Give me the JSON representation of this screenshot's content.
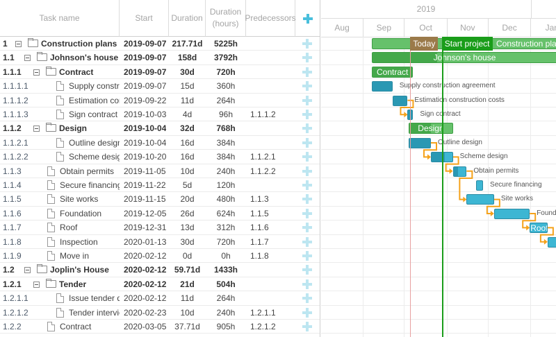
{
  "columns": {
    "task_name": "Task name",
    "start": "Start",
    "duration": "Duration",
    "duration_hours": "Duration (hours)",
    "predecessors": "Predecessors",
    "add_icon": "plus-icon"
  },
  "timescale": {
    "year": "2019",
    "months": [
      "Aug",
      "Sep",
      "Oct",
      "Nov",
      "Dec",
      "Jan"
    ]
  },
  "markers": [
    {
      "label": "Today",
      "date": "2019-10-05",
      "color": "#e8a0a0",
      "label_bg": "#9b7a4a"
    },
    {
      "label": "Start project",
      "date": "2019-10-28",
      "color": "#1a9d1a",
      "label_bg": "#1a9d1a"
    }
  ],
  "colors": {
    "summary_bar": "#66c16b",
    "summary_progress": "#44a84a",
    "task_bar": "#3db6d3",
    "task_progress": "#2a98b3",
    "link": "#f5a21b"
  },
  "tasks": [
    {
      "wbs": "1",
      "name": "Construction plans",
      "start": "2019-09-07",
      "duration": "217.71d",
      "hours": "5225h",
      "pred": "",
      "level": 1,
      "summary": true,
      "days": 217.71,
      "progress": 0,
      "label_inside": true
    },
    {
      "wbs": "1.1",
      "name": "Johnson's house",
      "start": "2019-09-07",
      "duration": "158d",
      "hours": "3792h",
      "pred": "",
      "level": 2,
      "summary": true,
      "days": 158,
      "progress": 0.3,
      "label_inside": true
    },
    {
      "wbs": "1.1.1",
      "name": "Contract",
      "start": "2019-09-07",
      "duration": "30d",
      "hours": "720h",
      "pred": "",
      "level": 3,
      "summary": true,
      "days": 30,
      "progress": 1,
      "label_inside": true
    },
    {
      "wbs": "1.1.1.1",
      "name": "Supply construction agreement",
      "start": "2019-09-07",
      "duration": "15d",
      "hours": "360h",
      "pred": "",
      "level": 4,
      "summary": false,
      "days": 15,
      "progress": 1
    },
    {
      "wbs": "1.1.1.2",
      "name": "Estimation construction costs",
      "start": "2019-09-22",
      "duration": "11d",
      "hours": "264h",
      "pred": "",
      "level": 4,
      "summary": false,
      "days": 11,
      "progress": 1
    },
    {
      "wbs": "1.1.1.3",
      "name": "Sign contract",
      "start": "2019-10-03",
      "duration": "4d",
      "hours": "96h",
      "pred": "1.1.1.2",
      "level": 4,
      "summary": false,
      "days": 4,
      "progress": 1
    },
    {
      "wbs": "1.1.2",
      "name": "Design",
      "start": "2019-10-04",
      "duration": "32d",
      "hours": "768h",
      "pred": "",
      "level": 3,
      "summary": true,
      "days": 32,
      "progress": 0.5,
      "label_inside": true
    },
    {
      "wbs": "1.1.2.1",
      "name": "Outline design",
      "start": "2019-10-04",
      "duration": "16d",
      "hours": "384h",
      "pred": "",
      "level": 4,
      "summary": false,
      "days": 16,
      "progress": 1
    },
    {
      "wbs": "1.1.2.2",
      "name": "Scheme design",
      "start": "2019-10-20",
      "duration": "16d",
      "hours": "384h",
      "pred": "1.1.2.1",
      "level": 4,
      "summary": false,
      "days": 16,
      "progress": 0.65
    },
    {
      "wbs": "1.1.3",
      "name": "Obtain permits",
      "start": "2019-11-05",
      "duration": "10d",
      "hours": "240h",
      "pred": "1.1.2.2",
      "level": 3,
      "summary": false,
      "days": 10,
      "progress": 0.35
    },
    {
      "wbs": "1.1.4",
      "name": "Secure financing",
      "start": "2019-11-22",
      "duration": "5d",
      "hours": "120h",
      "pred": "",
      "level": 3,
      "summary": false,
      "days": 5,
      "progress": 0
    },
    {
      "wbs": "1.1.5",
      "name": "Site works",
      "start": "2019-11-15",
      "duration": "20d",
      "hours": "480h",
      "pred": "1.1.3",
      "level": 3,
      "summary": false,
      "days": 20,
      "progress": 0
    },
    {
      "wbs": "1.1.6",
      "name": "Foundation",
      "start": "2019-12-05",
      "duration": "26d",
      "hours": "624h",
      "pred": "1.1.5",
      "level": 3,
      "summary": false,
      "days": 26,
      "progress": 0
    },
    {
      "wbs": "1.1.7",
      "name": "Roof",
      "start": "2019-12-31",
      "duration": "13d",
      "hours": "312h",
      "pred": "1.1.6",
      "level": 3,
      "summary": false,
      "days": 13,
      "progress": 0,
      "label_inside": true
    },
    {
      "wbs": "1.1.8",
      "name": "Inspection",
      "start": "2020-01-13",
      "duration": "30d",
      "hours": "720h",
      "pred": "1.1.7",
      "level": 3,
      "summary": false,
      "days": 30,
      "progress": 0
    },
    {
      "wbs": "1.1.9",
      "name": "Move in",
      "start": "2020-02-12",
      "duration": "0d",
      "hours": "0h",
      "pred": "1.1.8",
      "level": 3,
      "summary": false,
      "days": 0,
      "progress": 0
    },
    {
      "wbs": "1.2",
      "name": "Joplin's House",
      "start": "2020-02-12",
      "duration": "59.71d",
      "hours": "1433h",
      "pred": "",
      "level": 2,
      "summary": true,
      "days": 59.71,
      "progress": 0,
      "label_inside": true
    },
    {
      "wbs": "1.2.1",
      "name": "Tender",
      "start": "2020-02-12",
      "duration": "21d",
      "hours": "504h",
      "pred": "",
      "level": 3,
      "summary": true,
      "days": 21,
      "progress": 0,
      "label_inside": true
    },
    {
      "wbs": "1.2.1.1",
      "name": "Issue tender documents",
      "start": "2020-02-12",
      "duration": "11d",
      "hours": "264h",
      "pred": "",
      "level": 4,
      "summary": false,
      "days": 11,
      "progress": 0
    },
    {
      "wbs": "1.2.1.2",
      "name": "Tender interviews",
      "start": "2020-02-23",
      "duration": "10d",
      "hours": "240h",
      "pred": "1.2.1.1",
      "level": 4,
      "summary": false,
      "days": 10,
      "progress": 0
    },
    {
      "wbs": "1.2.2",
      "name": "Contract",
      "start": "2020-03-05",
      "duration": "37.71d",
      "hours": "905h",
      "pred": "1.2.1.2",
      "level": 3,
      "summary": false,
      "days": 37.71,
      "progress": 0
    }
  ]
}
